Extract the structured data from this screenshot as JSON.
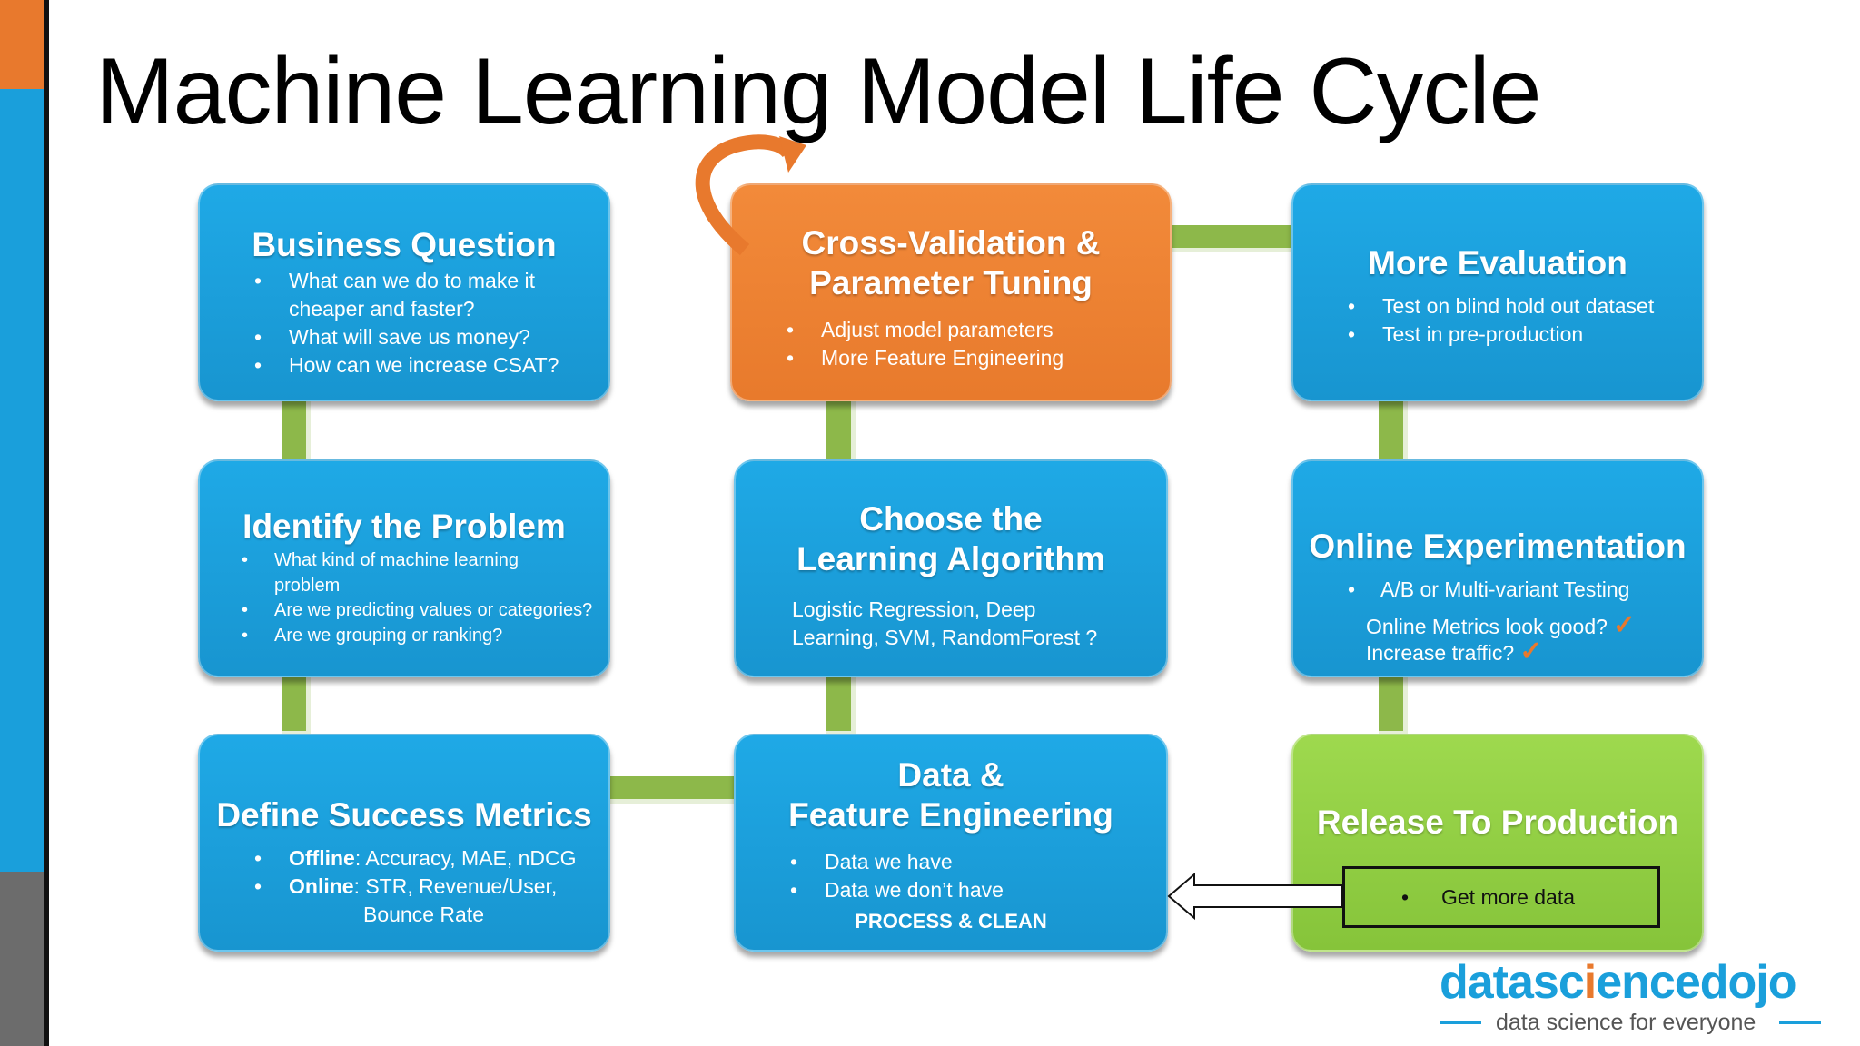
{
  "title": "Machine Learning Model Life Cycle",
  "colors": {
    "blue": "#1A9FDB",
    "orange": "#E8792D",
    "green": "#8DB84A",
    "gray": "#6C6C6C"
  },
  "boxes": {
    "business_question": {
      "title": "Business Question",
      "bullets": [
        "What can we do to make it",
        "cheaper and faster?",
        "What will save us money?",
        "How can we increase CSAT?"
      ]
    },
    "cross_validation": {
      "title_line1": "Cross-Validation &",
      "title_line2": "Parameter Tuning",
      "bullets": [
        "Adjust model parameters",
        "More Feature Engineering"
      ]
    },
    "more_evaluation": {
      "title": "More Evaluation",
      "bullets": [
        "Test on blind hold out dataset",
        "Test in pre-production"
      ]
    },
    "identify_problem": {
      "title": "Identify the Problem",
      "bullets": [
        "What kind of machine learning",
        "problem",
        "Are we predicting values or categories?",
        "Are we grouping or ranking?"
      ]
    },
    "choose_algorithm": {
      "title_line1": "Choose the",
      "title_line2": "Learning Algorithm",
      "text_line1": "Logistic Regression, Deep",
      "text_line2": "Learning, SVM, RandomForest ?"
    },
    "online_experimentation": {
      "title": "Online Experimentation",
      "bullet": "A/B or Multi-variant Testing",
      "line1": "Online Metrics look good?",
      "line2": "Increase traffic?",
      "check_icon": "checkmark-icon"
    },
    "define_metrics": {
      "title": "Define Success Metrics",
      "offline_label": "Offline",
      "offline_text": ": Accuracy, MAE, nDCG",
      "online_label": "Online",
      "online_text": ": STR, Revenue/User,",
      "online_text2": "Bounce Rate"
    },
    "data_feature": {
      "title_line1": "Data &",
      "title_line2": "Feature Engineering",
      "bullets": [
        "Data we have",
        "Data we don’t have"
      ],
      "footer": "PROCESS & CLEAN"
    },
    "release": {
      "title": "Release To Production",
      "bullet": "Get more data"
    }
  },
  "logo": {
    "part1": "datasc",
    "part2": "i",
    "part3": "encedojo",
    "tagline": "data science for everyone"
  }
}
